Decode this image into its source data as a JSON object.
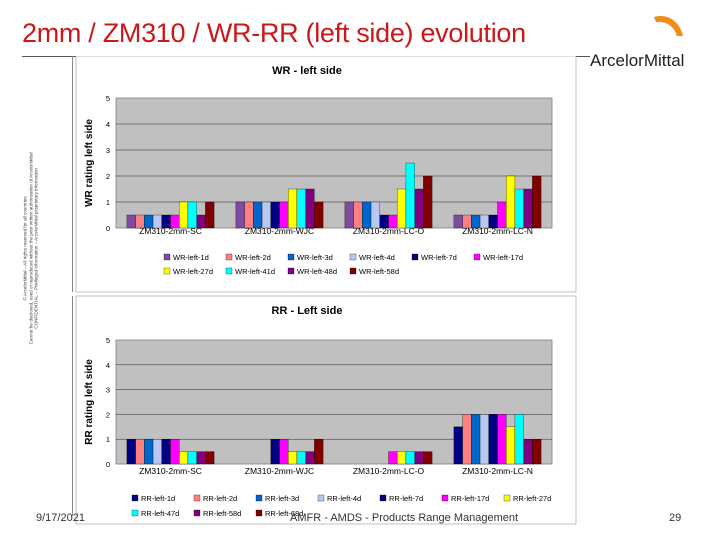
{
  "slide": {
    "title": "2mm / ZM310 / WR-RR (left side) evolution",
    "logo_text": "ArcelorMittal",
    "side_note_line1": "© ArcelorMittal – All rights reserved for all countries",
    "side_note_line2": "Cannot be disclosed, used or reproduced without the prior written authorisation of ArcelorMittal",
    "side_note_line3": "CONFIDENTIAL – Privileged Information – ArcelorMittal proprietary information",
    "date": "9/17/2021",
    "org": "AMFR - AMDS - Products Range Management",
    "page": "29",
    "colors": {
      "title": "#cc1818",
      "logo_orange": "#f28c16",
      "plot_bg": "#c0c0c0"
    }
  },
  "chart_data": [
    {
      "type": "bar",
      "title": "WR - left side",
      "xlabel": "",
      "ylabel": "WR rating left side",
      "ylim": [
        0,
        5
      ],
      "yticks": [
        "0",
        "1",
        "2",
        "3",
        "4",
        "5"
      ],
      "grid": true,
      "legend_position": "bottom",
      "categories": [
        "ZM310-2mm-SC",
        "ZM310-2mm-WJC",
        "ZM310-2mm-LC-O",
        "ZM310-2mm-LC-N"
      ],
      "series": [
        {
          "name": "WR-left-1d",
          "color": "#7f4aa0",
          "values": [
            0.5,
            1,
            1,
            0.5
          ]
        },
        {
          "name": "WR-left-2d",
          "color": "#ff8080",
          "values": [
            0.5,
            1,
            1,
            0.5
          ]
        },
        {
          "name": "WR-left-3d",
          "color": "#0066cc",
          "values": [
            0.5,
            1,
            1,
            0.5
          ]
        },
        {
          "name": "WR-left-4d",
          "color": "#b8c8f0",
          "values": [
            0.5,
            1,
            1,
            0.5
          ]
        },
        {
          "name": "WR-left-7d",
          "color": "#000080",
          "values": [
            0.5,
            1,
            0.5,
            0.5
          ]
        },
        {
          "name": "WR-left-17d",
          "color": "#ff00ff",
          "values": [
            0.5,
            1,
            0.5,
            1
          ]
        },
        {
          "name": "WR-left-27d",
          "color": "#ffff00",
          "values": [
            1,
            1.5,
            1.5,
            2
          ]
        },
        {
          "name": "WR-left-41d",
          "color": "#00ffff",
          "values": [
            1,
            1.5,
            2.5,
            1.5
          ]
        },
        {
          "name": "WR-left-48d",
          "color": "#800080",
          "values": [
            0.5,
            1.5,
            1.5,
            1.5
          ]
        },
        {
          "name": "WR-left-58d",
          "color": "#800000",
          "values": [
            1,
            1,
            2,
            2
          ]
        }
      ]
    },
    {
      "type": "bar",
      "title": "RR - Left side",
      "xlabel": "",
      "ylabel": "RR rating left side",
      "ylim": [
        0,
        5
      ],
      "yticks": [
        "0",
        "1",
        "2",
        "3",
        "4",
        "5"
      ],
      "grid": true,
      "legend_position": "bottom",
      "categories": [
        "ZM310-2mm-SC",
        "ZM310-2mm-WJC",
        "ZM310-2mm-LC-O",
        "ZM310-2mm-LC-N"
      ],
      "series": [
        {
          "name": "RR-left-1d",
          "color": "#000080",
          "values": [
            1,
            0,
            0,
            1.5
          ]
        },
        {
          "name": "RR-left-2d",
          "color": "#ff8080",
          "values": [
            1,
            0,
            0,
            2
          ]
        },
        {
          "name": "RR-left-3d",
          "color": "#0066cc",
          "values": [
            1,
            0,
            0,
            2
          ]
        },
        {
          "name": "RR-left-4d",
          "color": "#b8c8f0",
          "values": [
            1,
            0,
            0,
            2
          ]
        },
        {
          "name": "RR-left-7d",
          "color": "#000080",
          "values": [
            1,
            1,
            0,
            2
          ]
        },
        {
          "name": "RR-left-17d",
          "color": "#ff00ff",
          "values": [
            1,
            1,
            0.5,
            2
          ]
        },
        {
          "name": "RR-left-27d",
          "color": "#ffff00",
          "values": [
            0.5,
            0.5,
            0.5,
            1.5
          ]
        },
        {
          "name": "RR-left-47d",
          "color": "#00ffff",
          "values": [
            0.5,
            0.5,
            0.5,
            2
          ]
        },
        {
          "name": "RR-left-58d",
          "color": "#800080",
          "values": [
            0.5,
            0.5,
            0.5,
            1
          ]
        },
        {
          "name": "RR-left-68d",
          "color": "#800000",
          "values": [
            0.5,
            1,
            0.5,
            1
          ]
        }
      ]
    }
  ]
}
